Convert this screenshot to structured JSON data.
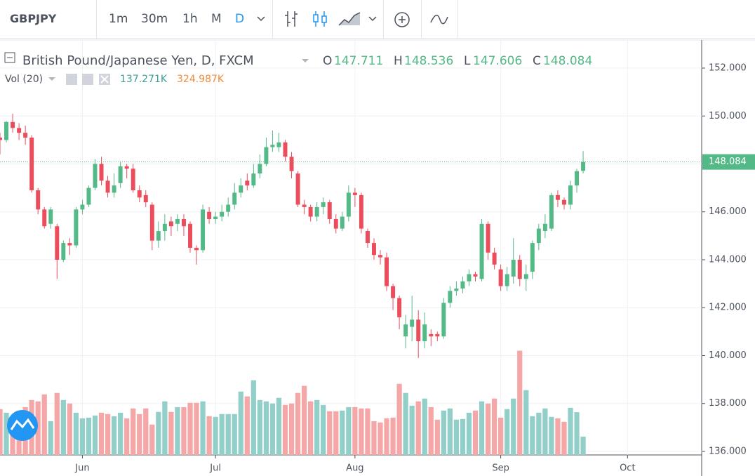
{
  "toolbar": {
    "symbol": "GBPJPY",
    "intervals": [
      "1m",
      "30m",
      "1h",
      "M",
      "D"
    ]
  },
  "chart_data": {
    "type": "candlestick",
    "title": "British Pound/Japanese Yen, D, FXCM",
    "legend_labels": [
      "O",
      "H",
      "L",
      "C"
    ],
    "up_color": "#53b987",
    "down_color": "#eb4d5c",
    "volume_up_color": "#93cfc9",
    "volume_down_color": "#f5a6a6",
    "volume_indicator": {
      "name": "Vol (20)",
      "value": 137.271,
      "value_label": "137.271K",
      "ma": 324.987,
      "ma_label": "324.987K"
    },
    "open": [
      149.1,
      149.0,
      149.75,
      149.5,
      149.3,
      149.1,
      146.9,
      146.1,
      145.5,
      145.4,
      144.0,
      144.7,
      144.6,
      146.1,
      146.3,
      147.0,
      148.0,
      147.3,
      146.8,
      147.2,
      147.9,
      147.8,
      146.9,
      146.7,
      146.3,
      144.8,
      145.2,
      145.6,
      145.5,
      145.7,
      145.5,
      144.5,
      144.4,
      146.0,
      145.7,
      145.8,
      146.0,
      146.3,
      146.8,
      147.3,
      147.1,
      147.6,
      148.0,
      148.7,
      148.7,
      148.9,
      148.3,
      147.6,
      146.3,
      146.2,
      145.8,
      146.2,
      146.4,
      145.7,
      145.3,
      145.8,
      146.8,
      146.7,
      145.2,
      144.7,
      144.2,
      144.1,
      142.9,
      142.4,
      140.8,
      141.2,
      141.5,
      140.6,
      140.9,
      140.9,
      140.8,
      142.2,
      142.7,
      142.8,
      143.1,
      143.4,
      143.2,
      145.5,
      144.3,
      143.6,
      142.9,
      143.3,
      144.0,
      143.2,
      143.5,
      144.7,
      145.2,
      145.3,
      146.7,
      146.5,
      146.3,
      147.1,
      147.711
    ],
    "high": [
      149.3,
      149.8,
      150.1,
      149.7,
      149.6,
      149.2,
      147.0,
      146.2,
      146.2,
      145.5,
      144.8,
      144.9,
      146.2,
      146.5,
      147.1,
      148.2,
      148.3,
      147.5,
      147.6,
      148.1,
      148.0,
      148.0,
      147.1,
      146.9,
      146.4,
      145.6,
      145.9,
      145.8,
      145.9,
      145.9,
      145.6,
      144.6,
      146.3,
      146.2,
      146.0,
      146.3,
      146.6,
      147.2,
      147.4,
      147.6,
      148.0,
      148.4,
      149.1,
      149.4,
      149.3,
      149.0,
      148.5,
      147.7,
      146.5,
      146.3,
      146.4,
      146.6,
      146.5,
      145.9,
      146.0,
      147.1,
      147.0,
      146.8,
      145.3,
      144.9,
      144.4,
      144.3,
      143.0,
      142.5,
      141.7,
      142.5,
      141.9,
      141.8,
      141.1,
      141.0,
      142.4,
      142.9,
      143.1,
      143.3,
      143.6,
      143.5,
      145.7,
      145.6,
      144.5,
      143.8,
      143.7,
      144.9,
      144.2,
      143.8,
      144.8,
      145.5,
      145.9,
      146.8,
      146.9,
      146.6,
      147.3,
      147.8,
      148.536
    ],
    "low": [
      148.4,
      148.9,
      149.3,
      149.0,
      148.8,
      146.8,
      145.9,
      145.3,
      145.3,
      143.2,
      143.9,
      144.2,
      144.5,
      145.9,
      146.2,
      146.9,
      147.1,
      146.6,
      146.6,
      147.0,
      147.4,
      146.8,
      146.4,
      146.2,
      144.4,
      144.5,
      144.8,
      145.0,
      145.2,
      145.0,
      144.3,
      143.8,
      144.3,
      145.5,
      145.5,
      145.6,
      145.8,
      146.1,
      146.6,
      146.9,
      147.0,
      147.4,
      147.9,
      148.5,
      148.5,
      148.1,
      147.4,
      146.2,
      145.9,
      145.6,
      145.6,
      145.9,
      145.5,
      145.1,
      145.2,
      145.6,
      146.2,
      145.1,
      144.5,
      144.0,
      143.8,
      142.7,
      141.9,
      141.1,
      140.3,
      140.6,
      139.9,
      140.3,
      140.4,
      140.6,
      140.7,
      142.0,
      142.5,
      142.6,
      142.9,
      143.1,
      143.1,
      144.0,
      143.6,
      142.7,
      142.7,
      143.0,
      142.9,
      142.7,
      143.2,
      144.4,
      144.9,
      145.2,
      146.2,
      146.1,
      146.1,
      146.8,
      147.606
    ],
    "close": [
      149.0,
      149.75,
      149.5,
      149.3,
      149.1,
      146.9,
      146.1,
      145.4,
      146.1,
      144.0,
      144.7,
      144.6,
      146.1,
      146.3,
      147.0,
      148.0,
      147.3,
      146.8,
      147.1,
      147.9,
      147.8,
      146.9,
      146.6,
      146.4,
      144.8,
      145.2,
      145.5,
      145.4,
      145.7,
      145.4,
      144.5,
      144.4,
      146.1,
      145.7,
      145.8,
      146.0,
      146.3,
      146.8,
      147.1,
      147.1,
      147.6,
      148.0,
      148.7,
      148.8,
      148.9,
      148.3,
      147.7,
      146.3,
      146.2,
      145.8,
      146.2,
      146.4,
      145.7,
      145.3,
      145.8,
      146.8,
      146.7,
      145.3,
      144.7,
      144.2,
      144.1,
      142.9,
      142.4,
      141.6,
      141.3,
      141.5,
      140.6,
      141.3,
      140.8,
      140.8,
      142.2,
      142.7,
      142.8,
      143.1,
      143.4,
      143.3,
      145.5,
      144.3,
      143.8,
      142.9,
      143.4,
      144.0,
      143.2,
      143.4,
      144.7,
      145.3,
      145.5,
      146.7,
      146.5,
      146.3,
      147.1,
      147.7,
      148.084
    ],
    "volume": [
      343,
      316,
      279,
      332,
      358,
      411,
      401,
      453,
      253,
      464,
      411,
      385,
      316,
      274,
      279,
      295,
      316,
      306,
      290,
      316,
      274,
      348,
      306,
      348,
      227,
      322,
      401,
      322,
      358,
      358,
      390,
      390,
      401,
      290,
      285,
      306,
      306,
      306,
      474,
      438,
      559,
      411,
      401,
      385,
      427,
      374,
      385,
      464,
      517,
      401,
      411,
      374,
      327,
      327,
      332,
      358,
      358,
      348,
      348,
      253,
      243,
      274,
      279,
      532,
      464,
      369,
      401,
      422,
      358,
      264,
      332,
      348,
      264,
      269,
      316,
      332,
      401,
      385,
      422,
      279,
      343,
      422,
      780,
      485,
      290,
      316,
      348,
      285,
      274,
      248,
      353,
      320,
      137.271
    ],
    "volume_ylim": [
      0,
      3100
    ],
    "xlim": [
      0,
      110.7
    ],
    "xticks": [
      {
        "value": 13,
        "label": "Jun"
      },
      {
        "value": 34,
        "label": "Jul"
      },
      {
        "value": 56,
        "label": "Aug"
      },
      {
        "value": 79,
        "label": "Sep"
      },
      {
        "value": 99,
        "label": "Oct"
      }
    ],
    "ylim": [
      135.853,
      153.143
    ],
    "yticks": [
      {
        "value": 136,
        "label": "136.000"
      },
      {
        "value": 138,
        "label": "138.000"
      },
      {
        "value": 140,
        "label": "140.000"
      },
      {
        "value": 142,
        "label": "142.000"
      },
      {
        "value": 144,
        "label": "144.000"
      },
      {
        "value": 146,
        "label": "146.000"
      },
      {
        "value": 148,
        "label": "148.000"
      },
      {
        "value": 150,
        "label": "150.000"
      },
      {
        "value": 152,
        "label": "152.000"
      }
    ],
    "grid": true
  }
}
